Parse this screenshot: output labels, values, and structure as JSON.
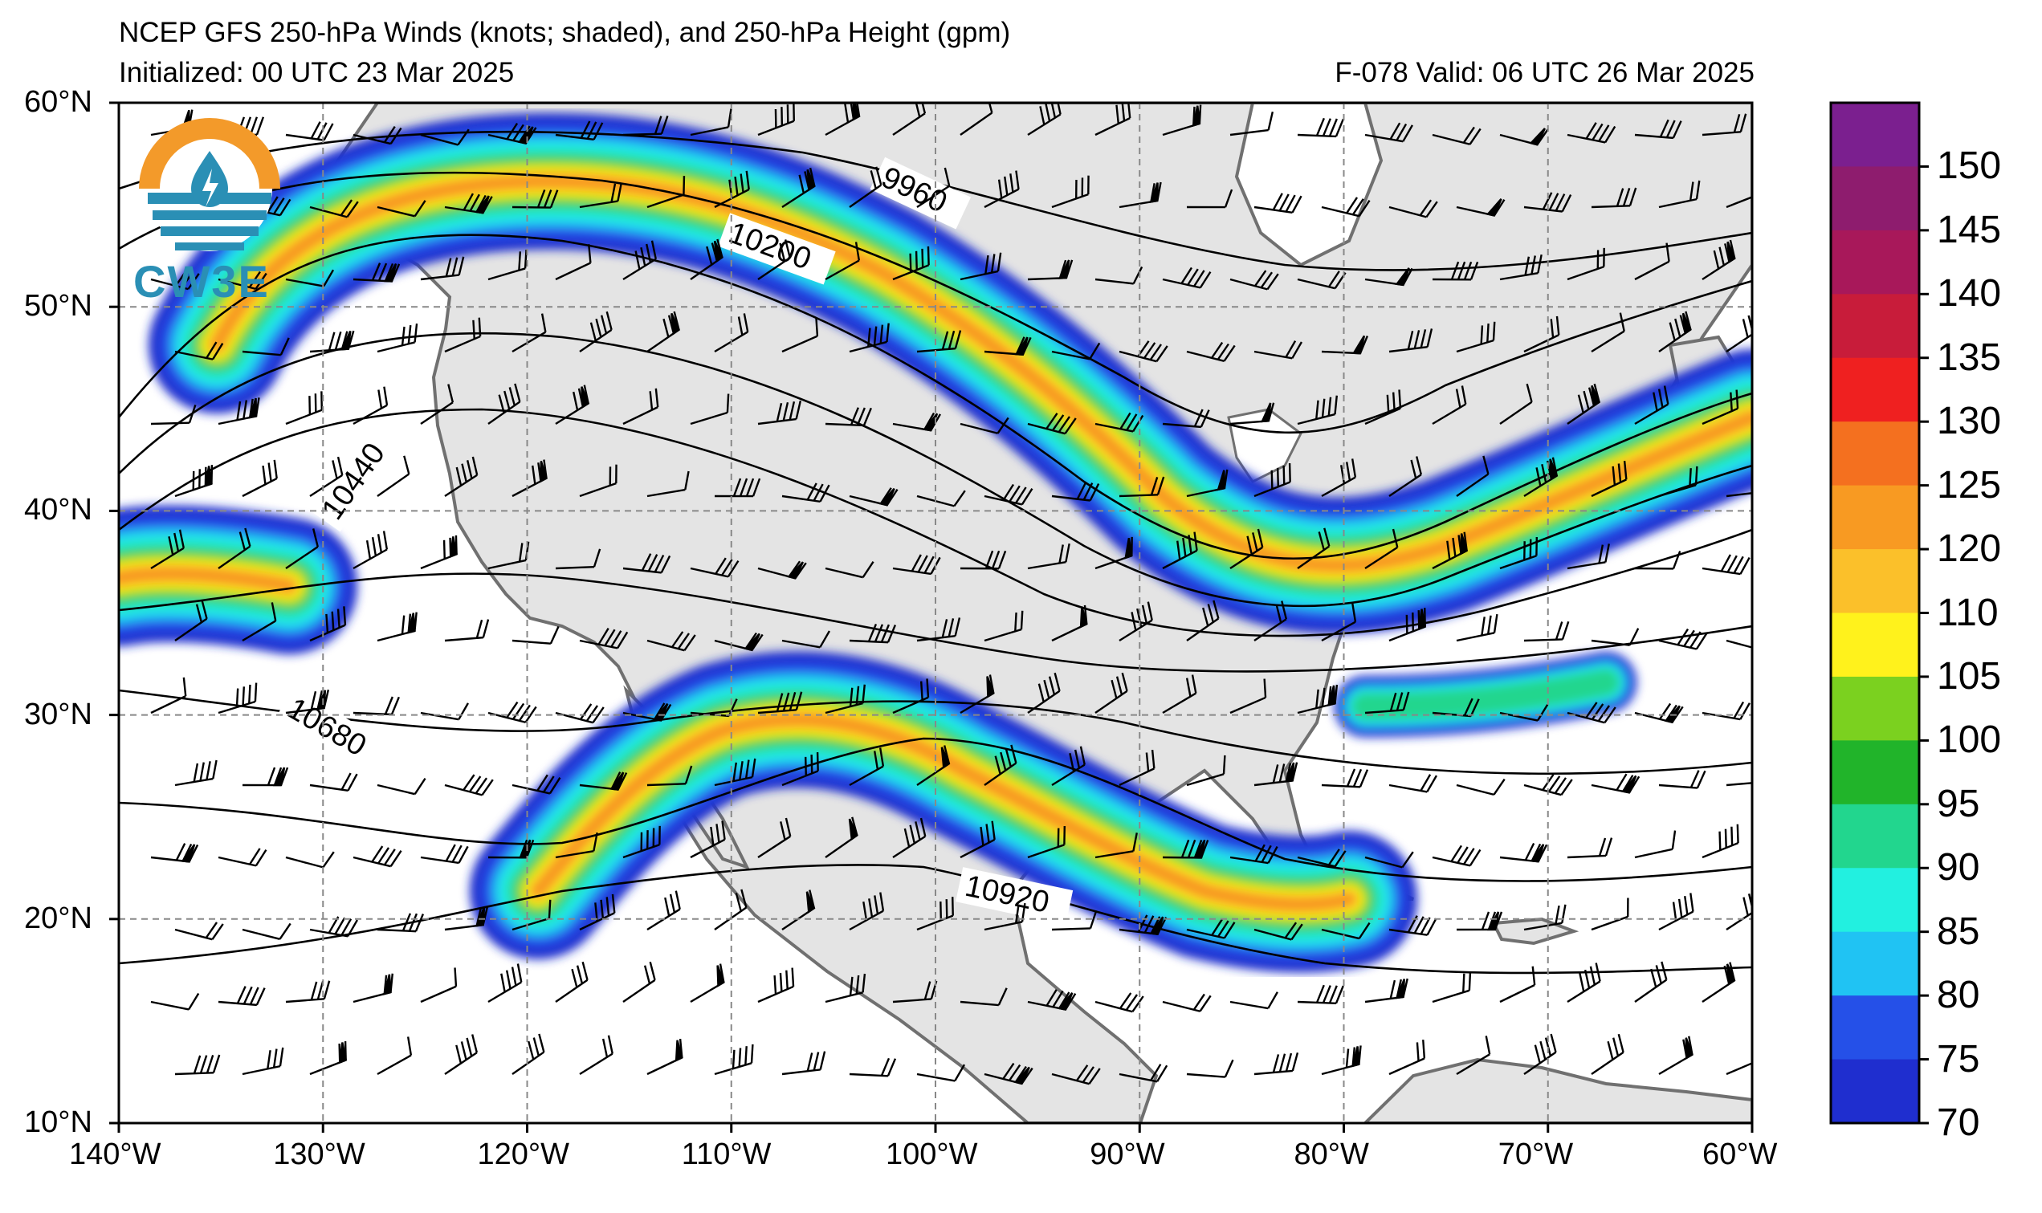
{
  "title_line1": "NCEP GFS 250-hPa Winds (knots; shaded), and 250-hPa Height (gpm)",
  "title_line2": "Initialized: 00 UTC 23 Mar 2025",
  "title_right": "F-078  Valid: 06 UTC 26 Mar 2025",
  "logo_text": "CW3E",
  "lat_labels": [
    "60°N",
    "50°N",
    "40°N",
    "30°N",
    "20°N",
    "10°N"
  ],
  "lon_labels": [
    "140°W",
    "130°W",
    "120°W",
    "110°W",
    "100°W",
    "90°W",
    "80°W",
    "70°W",
    "60°W"
  ],
  "colorbar": {
    "labels": [
      "150",
      "145",
      "140",
      "135",
      "130",
      "125",
      "120",
      "110",
      "105",
      "100",
      "95",
      "90",
      "85",
      "80",
      "75",
      "70"
    ],
    "colors": [
      "#7b1f8f",
      "#8e1c6e",
      "#a8185a",
      "#c81c3a",
      "#ef2020",
      "#f4701f",
      "#f89a22",
      "#fbc02a",
      "#fff21c",
      "#7bd11f",
      "#21b42a",
      "#22d68e",
      "#22f0e0",
      "#20c3f3",
      "#2550e8",
      "#1f2ecf"
    ]
  },
  "contour_labels": [
    "9960",
    "10200",
    "10440",
    "10680",
    "10920"
  ],
  "colors": {
    "land": "#e4e4e4",
    "ocean": "#ffffff",
    "border": "#707070",
    "contour": "#000000"
  }
}
